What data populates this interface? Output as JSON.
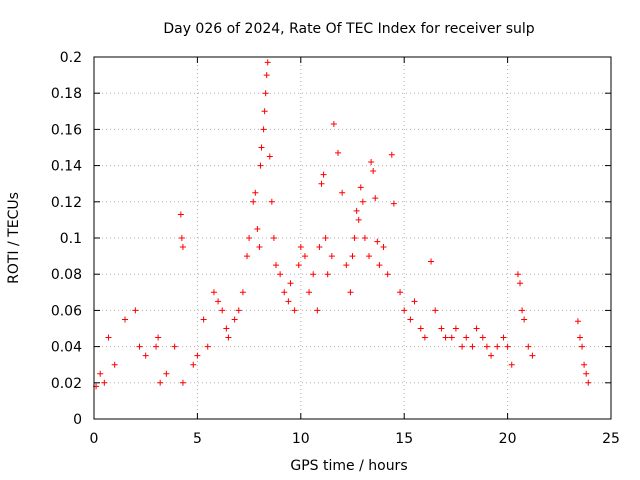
{
  "chart_data": {
    "type": "scatter",
    "title": "Day 026 of 2024, Rate Of TEC Index for receiver sulp",
    "xlabel": "GPS time / hours",
    "ylabel": "ROTI / TECUs",
    "xlim": [
      0,
      25
    ],
    "ylim": [
      0,
      0.2
    ],
    "xticks": [
      "0",
      "5",
      "10",
      "15",
      "20",
      "25"
    ],
    "yticks": [
      "0",
      "0.02",
      "0.04",
      "0.06",
      "0.08",
      "0.1",
      "0.12",
      "0.14",
      "0.16",
      "0.18",
      "0.2"
    ],
    "grid": true,
    "marker": "+",
    "color": "#ff0000",
    "series": [
      {
        "name": "ROTI",
        "x": [
          0.1,
          0.3,
          0.5,
          0.7,
          1.0,
          1.5,
          2.0,
          2.2,
          2.5,
          3.0,
          3.1,
          3.2,
          3.5,
          3.9,
          4.2,
          4.25,
          4.3,
          4.3,
          4.8,
          5.0,
          5.3,
          5.5,
          5.8,
          6.0,
          6.2,
          6.4,
          6.5,
          6.8,
          7.0,
          7.2,
          7.4,
          7.5,
          7.7,
          7.8,
          7.9,
          8.0,
          8.05,
          8.1,
          8.2,
          8.25,
          8.3,
          8.35,
          8.4,
          8.5,
          8.6,
          8.7,
          8.8,
          9.0,
          9.2,
          9.4,
          9.5,
          9.7,
          9.9,
          10.0,
          10.2,
          10.4,
          10.6,
          10.8,
          10.9,
          11.0,
          11.1,
          11.2,
          11.3,
          11.5,
          11.6,
          11.8,
          12.0,
          12.2,
          12.4,
          12.5,
          12.6,
          12.7,
          12.8,
          12.9,
          13.0,
          13.1,
          13.3,
          13.4,
          13.5,
          13.6,
          13.7,
          13.8,
          14.0,
          14.2,
          14.4,
          14.5,
          14.8,
          15.0,
          15.3,
          15.5,
          15.8,
          16.0,
          16.3,
          16.5,
          16.8,
          17.0,
          17.3,
          17.5,
          17.8,
          18.0,
          18.3,
          18.5,
          18.8,
          19.0,
          19.2,
          19.5,
          19.8,
          20.0,
          20.2,
          20.5,
          20.6,
          20.7,
          20.8,
          21.0,
          21.2,
          23.4,
          23.5,
          23.6,
          23.7,
          23.8,
          23.9
        ],
        "y": [
          0.018,
          0.025,
          0.02,
          0.045,
          0.03,
          0.055,
          0.06,
          0.04,
          0.035,
          0.04,
          0.045,
          0.02,
          0.025,
          0.04,
          0.113,
          0.1,
          0.095,
          0.02,
          0.03,
          0.035,
          0.055,
          0.04,
          0.07,
          0.065,
          0.06,
          0.05,
          0.045,
          0.055,
          0.06,
          0.07,
          0.09,
          0.1,
          0.12,
          0.125,
          0.105,
          0.095,
          0.14,
          0.15,
          0.16,
          0.17,
          0.18,
          0.19,
          0.197,
          0.145,
          0.12,
          0.1,
          0.085,
          0.08,
          0.07,
          0.065,
          0.075,
          0.06,
          0.085,
          0.095,
          0.09,
          0.07,
          0.08,
          0.06,
          0.095,
          0.13,
          0.135,
          0.1,
          0.08,
          0.09,
          0.163,
          0.147,
          0.125,
          0.085,
          0.07,
          0.09,
          0.1,
          0.115,
          0.11,
          0.128,
          0.12,
          0.1,
          0.09,
          0.142,
          0.137,
          0.122,
          0.098,
          0.085,
          0.095,
          0.08,
          0.146,
          0.119,
          0.07,
          0.06,
          0.055,
          0.065,
          0.05,
          0.045,
          0.087,
          0.06,
          0.05,
          0.045,
          0.045,
          0.05,
          0.04,
          0.045,
          0.04,
          0.05,
          0.045,
          0.04,
          0.035,
          0.04,
          0.045,
          0.04,
          0.03,
          0.08,
          0.075,
          0.06,
          0.055,
          0.04,
          0.035,
          0.054,
          0.045,
          0.04,
          0.03,
          0.025,
          0.02
        ]
      }
    ]
  }
}
